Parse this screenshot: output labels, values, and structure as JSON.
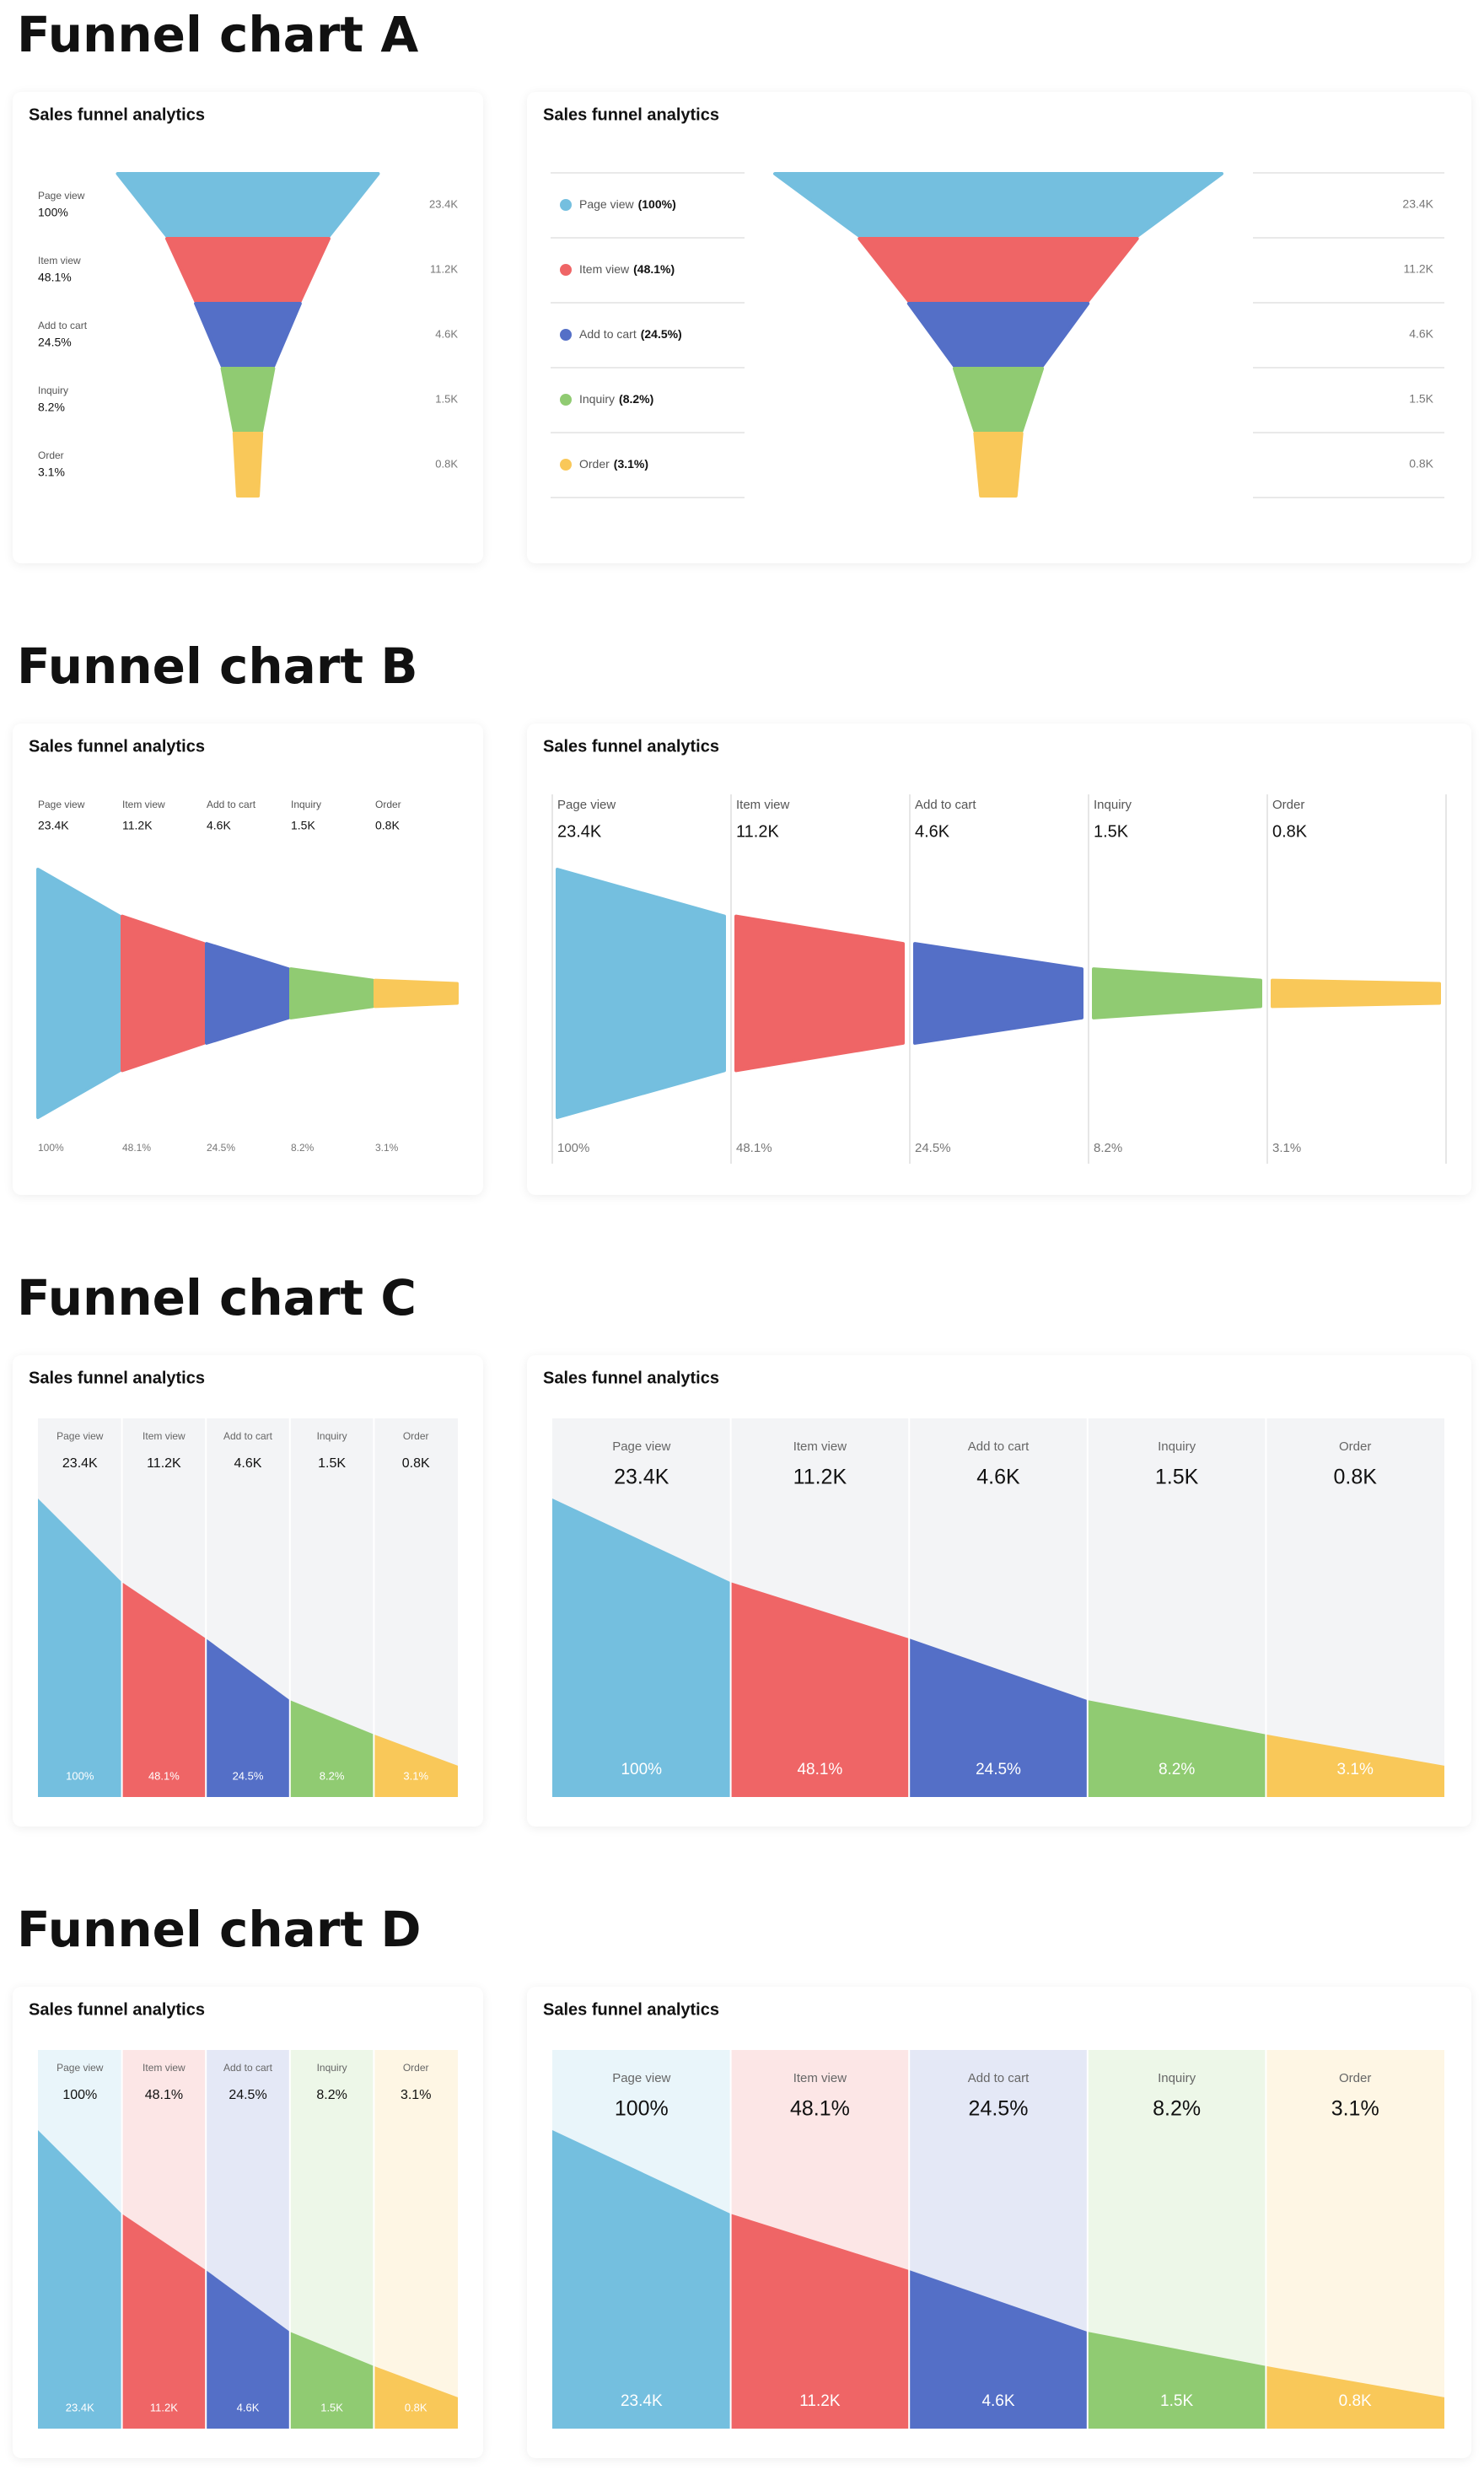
{
  "headings": [
    "Funnel chart A",
    "Funnel chart B",
    "Funnel chart C",
    "Funnel chart D"
  ],
  "chart_data": [
    {
      "type": "funnel",
      "variant": "vertical",
      "title": "Sales funnel analytics",
      "categories": [
        "Page view",
        "Item view",
        "Add to cart",
        "Inquiry",
        "Order"
      ],
      "values": [
        23400,
        11200,
        4600,
        1500,
        800
      ],
      "value_labels": [
        "23.4K",
        "11.2K",
        "4.6K",
        "1.5K",
        "0.8K"
      ],
      "percents": [
        100,
        48.1,
        24.5,
        8.2,
        3.1
      ],
      "percent_labels": [
        "100%",
        "48.1%",
        "24.5%",
        "8.2%",
        "3.1%"
      ],
      "colors": [
        "#74bfdf",
        "#ef6566",
        "#546fc7",
        "#90cb72",
        "#f9c859"
      ]
    },
    {
      "type": "funnel",
      "variant": "vertical",
      "legend": "table",
      "title": "Sales funnel analytics",
      "categories": [
        "Page view",
        "Item view",
        "Add to cart",
        "Inquiry",
        "Order"
      ],
      "values": [
        23400,
        11200,
        4600,
        1500,
        800
      ],
      "value_labels": [
        "23.4K",
        "11.2K",
        "4.6K",
        "1.5K",
        "0.8K"
      ],
      "percents": [
        100,
        48.1,
        24.5,
        8.2,
        3.1
      ],
      "percent_labels": [
        "(100%)",
        "(48.1%)",
        "(24.5%)",
        "(8.2%)",
        "(3.1%)"
      ],
      "colors": [
        "#74bfdf",
        "#ef6566",
        "#546fc7",
        "#90cb72",
        "#f9c859"
      ]
    },
    {
      "type": "funnel",
      "variant": "horizontal",
      "title": "Sales funnel analytics",
      "categories": [
        "Page view",
        "Item view",
        "Add to cart",
        "Inquiry",
        "Order"
      ],
      "values": [
        23400,
        11200,
        4600,
        1500,
        800
      ],
      "value_labels": [
        "23.4K",
        "11.2K",
        "4.6K",
        "1.5K",
        "0.8K"
      ],
      "percents": [
        100,
        48.1,
        24.5,
        8.2,
        3.1
      ],
      "percent_labels": [
        "100%",
        "48.1%",
        "24.5%",
        "8.2%",
        "3.1%"
      ],
      "colors": [
        "#74bfdf",
        "#ef6566",
        "#546fc7",
        "#90cb72",
        "#f9c859"
      ]
    },
    {
      "type": "funnel",
      "variant": "horizontal",
      "separators": true,
      "title": "Sales funnel analytics",
      "categories": [
        "Page view",
        "Item view",
        "Add to cart",
        "Inquiry",
        "Order"
      ],
      "values": [
        23400,
        11200,
        4600,
        1500,
        800
      ],
      "value_labels": [
        "23.4K",
        "11.2K",
        "4.6K",
        "1.5K",
        "0.8K"
      ],
      "percents": [
        100,
        48.1,
        24.5,
        8.2,
        3.1
      ],
      "percent_labels": [
        "100%",
        "48.1%",
        "24.5%",
        "8.2%",
        "3.1%"
      ],
      "colors": [
        "#74bfdf",
        "#ef6566",
        "#546fc7",
        "#90cb72",
        "#f9c859"
      ]
    },
    {
      "type": "funnel",
      "variant": "area",
      "title": "Sales funnel analytics",
      "categories": [
        "Page view",
        "Item view",
        "Add to cart",
        "Inquiry",
        "Order"
      ],
      "values": [
        23400,
        11200,
        4600,
        1500,
        800
      ],
      "value_labels": [
        "23.4K",
        "11.2K",
        "4.6K",
        "1.5K",
        "0.8K"
      ],
      "percents": [
        100,
        48.1,
        24.5,
        8.2,
        3.1
      ],
      "percent_labels": [
        "100%",
        "48.1%",
        "24.5%",
        "8.2%",
        "3.1%"
      ],
      "colors": [
        "#74bfdf",
        "#ef6566",
        "#546fc7",
        "#90cb72",
        "#f9c859"
      ]
    },
    {
      "type": "funnel",
      "variant": "area",
      "title": "Sales funnel analytics",
      "categories": [
        "Page view",
        "Item view",
        "Add to cart",
        "Inquiry",
        "Order"
      ],
      "values": [
        23400,
        11200,
        4600,
        1500,
        800
      ],
      "value_labels": [
        "23.4K",
        "11.2K",
        "4.6K",
        "1.5K",
        "0.8K"
      ],
      "percents": [
        100,
        48.1,
        24.5,
        8.2,
        3.1
      ],
      "percent_labels": [
        "100%",
        "48.1%",
        "24.5%",
        "8.2%",
        "3.1%"
      ],
      "colors": [
        "#74bfdf",
        "#ef6566",
        "#546fc7",
        "#90cb72",
        "#f9c859"
      ]
    },
    {
      "type": "funnel",
      "variant": "area-tinted",
      "title": "Sales funnel analytics",
      "categories": [
        "Page view",
        "Item view",
        "Add to cart",
        "Inquiry",
        "Order"
      ],
      "values": [
        23400,
        11200,
        4600,
        1500,
        800
      ],
      "value_labels": [
        "23.4K",
        "11.2K",
        "4.6K",
        "1.5K",
        "0.8K"
      ],
      "percents": [
        100,
        48.1,
        24.5,
        8.2,
        3.1
      ],
      "percent_labels": [
        "100%",
        "48.1%",
        "24.5%",
        "8.2%",
        "3.1%"
      ],
      "colors": [
        "#74bfdf",
        "#ef6566",
        "#546fc7",
        "#90cb72",
        "#f9c859"
      ]
    },
    {
      "type": "funnel",
      "variant": "area-tinted",
      "title": "Sales funnel analytics",
      "categories": [
        "Page view",
        "Item view",
        "Add to cart",
        "Inquiry",
        "Order"
      ],
      "values": [
        23400,
        11200,
        4600,
        1500,
        800
      ],
      "value_labels": [
        "23.4K",
        "11.2K",
        "4.6K",
        "1.5K",
        "0.8K"
      ],
      "percents": [
        100,
        48.1,
        24.5,
        8.2,
        3.1
      ],
      "percent_labels": [
        "100%",
        "48.1%",
        "24.5%",
        "8.2%",
        "3.1%"
      ],
      "colors": [
        "#74bfdf",
        "#ef6566",
        "#546fc7",
        "#90cb72",
        "#f9c859"
      ]
    }
  ]
}
